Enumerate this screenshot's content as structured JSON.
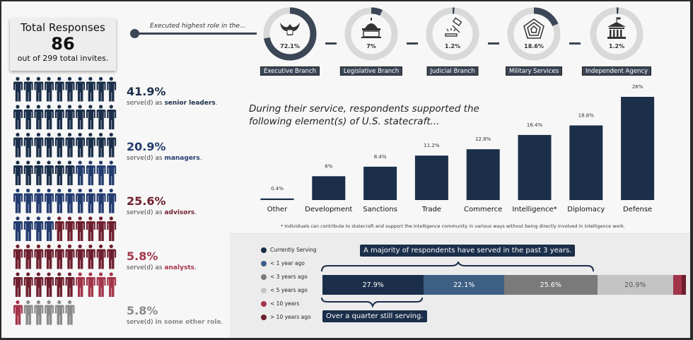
{
  "total": {
    "title": "Total Responses",
    "count": "86",
    "subtitle": "out of 299 total invites."
  },
  "roles_intro": "Executed highest role in the...",
  "branches": [
    {
      "label": "Executive Branch",
      "pct": "72.1%",
      "value": 72.1,
      "icon": "eagle-seal-icon"
    },
    {
      "label": "Legislative Branch",
      "pct": "7%",
      "value": 7,
      "icon": "capitol-icon"
    },
    {
      "label": "Judicial Branch",
      "pct": "1.2%",
      "value": 1.2,
      "icon": "gavel-icon"
    },
    {
      "label": "Military Services",
      "pct": "18.6%",
      "value": 18.6,
      "icon": "pentagon-icon"
    },
    {
      "label": "Independent Agency",
      "pct": "1.2%",
      "value": 1.2,
      "icon": "government-building-icon"
    }
  ],
  "roles": [
    {
      "pct": "41.9%",
      "pre": "serve(d) as ",
      "key": "senior leaders",
      "post": ".",
      "count": 36,
      "color": "#1b2f4a"
    },
    {
      "pct": "20.9%",
      "pre": "serve(d) as ",
      "key": "managers",
      "post": ".",
      "count": 18,
      "color": "#233b6e"
    },
    {
      "pct": "25.6%",
      "pre": "serve(d) as ",
      "key": "advisors",
      "post": ".",
      "count": 22,
      "color": "#6e1f2e"
    },
    {
      "pct": "5.8%",
      "pre": "serve(d) as ",
      "key": "analysts",
      "post": ".",
      "count": 5,
      "color": "#a3354a"
    },
    {
      "pct": "5.8%",
      "pre": "serve(d) ",
      "key": "in some other role",
      "post": ".",
      "count": 5,
      "color": "#8a8a8a"
    }
  ],
  "chart_data": {
    "type": "bar",
    "title": "During their service, respondents supported the following element(s) of U.S. statecraft...",
    "categories": [
      "Other",
      "Development",
      "Sanctions",
      "Trade",
      "Commerce",
      "Intelligence*",
      "Diplomacy",
      "Defense"
    ],
    "values": [
      0.4,
      6,
      8.4,
      11.2,
      12.8,
      16.4,
      18.8,
      26
    ],
    "labels": [
      "0.4%",
      "6%",
      "8.4%",
      "11.2%",
      "12.8%",
      "16.4%",
      "18.8%",
      "26%"
    ],
    "color": "#1b2f4a",
    "footnote": "*  Individuals can contribute to statecraft and support the intelligence community in various ways without being directly involved in intelligence work."
  },
  "recency": {
    "legend": [
      {
        "label": "Currently Serving",
        "color": "#1b2f4a",
        "value": 27.9,
        "text": "27.9%"
      },
      {
        "label": "< 1 year ago",
        "color": "#3d5f84",
        "value": 22.1,
        "text": "22.1%"
      },
      {
        "label": "< 3 years ago",
        "color": "#7a7a7a",
        "value": 25.6,
        "text": "25.6%"
      },
      {
        "label": "< 5 years ago",
        "color": "#c4c4c4",
        "value": 20.9,
        "text": "20.9%"
      },
      {
        "label": "< 10 years",
        "color": "#a3354a",
        "value": 2.3,
        "text": ""
      },
      {
        "label": "> 10 years ago",
        "color": "#6e1f2e",
        "value": 1.2,
        "text": ""
      }
    ],
    "callout_top": "A majority of respondents have served in the past 3 years.",
    "callout_bottom": "Over a quarter still serving."
  }
}
